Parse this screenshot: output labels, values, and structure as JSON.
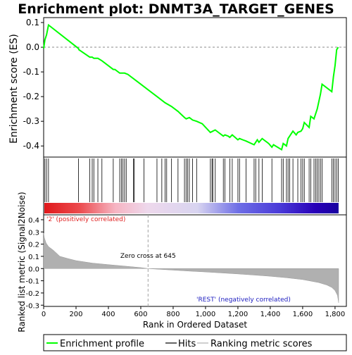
{
  "chart_data": {
    "type": "line",
    "title": "Enrichment plot: DNMT3A_TARGET_GENES",
    "top_panel": {
      "ylabel": "Enrichment score (ES)",
      "ylim": [
        -0.445,
        0.12
      ],
      "yticks": [
        0.1,
        0.0,
        -0.1,
        -0.2,
        -0.3,
        -0.4
      ],
      "ytick_labels": [
        "0.1",
        "0.0",
        "-0.1",
        "-0.2",
        "-0.3",
        "-0.4"
      ],
      "series": [
        {
          "name": "Enrichment profile",
          "color": "#00ff00",
          "x": [
            0,
            8,
            18,
            30,
            215,
            218,
            285,
            300,
            310,
            335,
            360,
            430,
            440,
            470,
            500,
            520,
            560,
            580,
            620,
            700,
            750,
            790,
            830,
            870,
            880,
            900,
            920,
            945,
            980,
            1030,
            1045,
            1060,
            1080,
            1110,
            1120,
            1140,
            1150,
            1165,
            1200,
            1210,
            1230,
            1250,
            1300,
            1320,
            1330,
            1350,
            1360,
            1390,
            1410,
            1420,
            1470,
            1480,
            1500,
            1510,
            1520,
            1540,
            1560,
            1570,
            1590,
            1600,
            1610,
            1640,
            1650,
            1670,
            1680,
            1690,
            1700,
            1710,
            1720,
            1780,
            1790,
            1800,
            1810,
            1820
          ],
          "values": [
            -0.005,
            0.03,
            0.05,
            0.09,
            -0.005,
            -0.01,
            -0.04,
            -0.04,
            -0.045,
            -0.045,
            -0.055,
            -0.09,
            -0.09,
            -0.105,
            -0.105,
            -0.11,
            -0.13,
            -0.14,
            -0.16,
            -0.2,
            -0.225,
            -0.24,
            -0.26,
            -0.285,
            -0.29,
            -0.285,
            -0.295,
            -0.3,
            -0.31,
            -0.345,
            -0.34,
            -0.335,
            -0.345,
            -0.36,
            -0.355,
            -0.36,
            -0.365,
            -0.355,
            -0.375,
            -0.37,
            -0.375,
            -0.38,
            -0.395,
            -0.375,
            -0.385,
            -0.37,
            -0.375,
            -0.39,
            -0.405,
            -0.395,
            -0.415,
            -0.39,
            -0.4,
            -0.37,
            -0.36,
            -0.34,
            -0.355,
            -0.345,
            -0.34,
            -0.33,
            -0.305,
            -0.325,
            -0.28,
            -0.29,
            -0.27,
            -0.25,
            -0.22,
            -0.19,
            -0.15,
            -0.18,
            -0.12,
            -0.075,
            -0.01,
            0.0
          ]
        }
      ]
    },
    "hits": {
      "name": "Hits",
      "color": "#000000",
      "positions": [
        8,
        18,
        30,
        215,
        285,
        300,
        310,
        335,
        360,
        430,
        470,
        480,
        490,
        500,
        510,
        555,
        560,
        620,
        700,
        730,
        750,
        760,
        790,
        830,
        870,
        880,
        890,
        900,
        920,
        945,
        1030,
        1040,
        1045,
        1060,
        1110,
        1120,
        1150,
        1165,
        1200,
        1210,
        1250,
        1300,
        1310,
        1330,
        1350,
        1410,
        1470,
        1480,
        1500,
        1510,
        1520,
        1540,
        1570,
        1590,
        1600,
        1610,
        1640,
        1650,
        1670,
        1680,
        1690,
        1700,
        1710,
        1720,
        1780,
        1790,
        1800,
        1810,
        1820
      ]
    },
    "ranking_bar": {
      "ramp": [
        {
          "offset": 0.0,
          "color": "#e0181b"
        },
        {
          "offset": 0.12,
          "color": "#ec4b4e"
        },
        {
          "offset": 0.24,
          "color": "#f6b4c2"
        },
        {
          "offset": 0.35,
          "color": "#eed8ec"
        },
        {
          "offset": 0.52,
          "color": "#d8d4f0"
        },
        {
          "offset": 0.66,
          "color": "#6e6ee6"
        },
        {
          "offset": 0.8,
          "color": "#4a3ad8"
        },
        {
          "offset": 0.92,
          "color": "#2800b8"
        },
        {
          "offset": 1.0,
          "color": "#1800a0"
        }
      ]
    },
    "bottom_panel": {
      "xlabel": "Rank in Ordered Dataset",
      "ylabel": "Ranked list metric (Signal2Noise)",
      "xlim": [
        0,
        1870
      ],
      "ylim": [
        -0.31,
        0.44
      ],
      "xticks": [
        0,
        200,
        400,
        600,
        800,
        1000,
        1200,
        1400,
        1600,
        1800
      ],
      "xtick_labels": [
        "0",
        "200",
        "400",
        "600",
        "800",
        "1,000",
        "1,200",
        "1,400",
        "1,600",
        "1,800"
      ],
      "yticks": [
        0.4,
        0.3,
        0.2,
        0.1,
        0.0,
        -0.1,
        -0.2,
        -0.3
      ],
      "ytick_labels": [
        "0.4",
        "0.3",
        "0.2",
        "0.1",
        "0.0",
        "-0.1",
        "-0.2",
        "-0.3"
      ],
      "series": [
        {
          "name": "Ranking metric scores",
          "color": "#b0b0b0",
          "x": [
            0,
            5,
            15,
            30,
            60,
            100,
            150,
            200,
            300,
            400,
            500,
            600,
            645,
            700,
            800,
            900,
            1000,
            1100,
            1200,
            1300,
            1400,
            1500,
            1600,
            1700,
            1750,
            1780,
            1800,
            1815,
            1822
          ],
          "values": [
            0.29,
            0.25,
            0.21,
            0.18,
            0.15,
            0.1,
            0.082,
            0.065,
            0.045,
            0.032,
            0.02,
            0.008,
            0.0,
            -0.005,
            -0.013,
            -0.021,
            -0.028,
            -0.036,
            -0.044,
            -0.053,
            -0.063,
            -0.075,
            -0.09,
            -0.115,
            -0.135,
            -0.155,
            -0.18,
            -0.22,
            -0.28
          ]
        }
      ],
      "zero_cross": 645,
      "zero_cross_label": "Zero cross at 645",
      "pos_label": "'2' (positively correlated)",
      "neg_label": "'REST' (negatively correlated)"
    },
    "legend": {
      "placement": "bottom",
      "items": [
        {
          "label": "Enrichment profile",
          "color": "#00ff00"
        },
        {
          "label": "Hits",
          "color": "#000000"
        },
        {
          "label": "Ranking metric scores",
          "color": "#b0b0b0"
        }
      ]
    }
  }
}
